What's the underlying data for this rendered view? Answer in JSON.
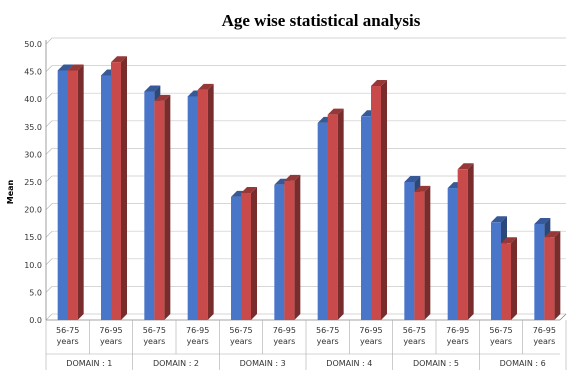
{
  "chart_data": {
    "type": "bar",
    "title": "Age wise statistical analysis",
    "ylabel": "Mean",
    "xlabel": "",
    "ylim": [
      0,
      50
    ],
    "yticks": [
      "0.0",
      "5.0",
      "10.0",
      "15.0",
      "20.0",
      "25.0",
      "30.0",
      "35.0",
      "40.0",
      "45.0",
      "50.0"
    ],
    "grid": true,
    "legend": "none",
    "groups": [
      {
        "label": "DOMAIN : 1",
        "categories": [
          "56-75 years",
          "76-95 years"
        ]
      },
      {
        "label": "DOMAIN : 2",
        "categories": [
          "56-75 years",
          "76-95 years"
        ]
      },
      {
        "label": "DOMAIN : 3",
        "categories": [
          "56-75 years",
          "76-95 years"
        ]
      },
      {
        "label": "DOMAIN : 4",
        "categories": [
          "56-75 years",
          "76-95 years"
        ]
      },
      {
        "label": "DOMAIN : 5",
        "categories": [
          "56-75 years",
          "76-95 years"
        ]
      },
      {
        "label": "DOMAIN : 6",
        "categories": [
          "56-75 years",
          "76-95 years"
        ]
      }
    ],
    "series": [
      {
        "values": [
          45.2,
          44.3,
          41.4,
          40.5,
          22.3,
          24.5,
          35.7,
          36.9,
          25.0,
          23.9,
          17.7,
          17.4
        ],
        "color": "#4a76c9"
      },
      {
        "values": [
          45.2,
          46.7,
          39.7,
          41.7,
          23.0,
          25.2,
          37.2,
          42.4,
          23.2,
          27.3,
          13.9,
          15.0
        ],
        "color": "#c94a4a"
      }
    ]
  }
}
